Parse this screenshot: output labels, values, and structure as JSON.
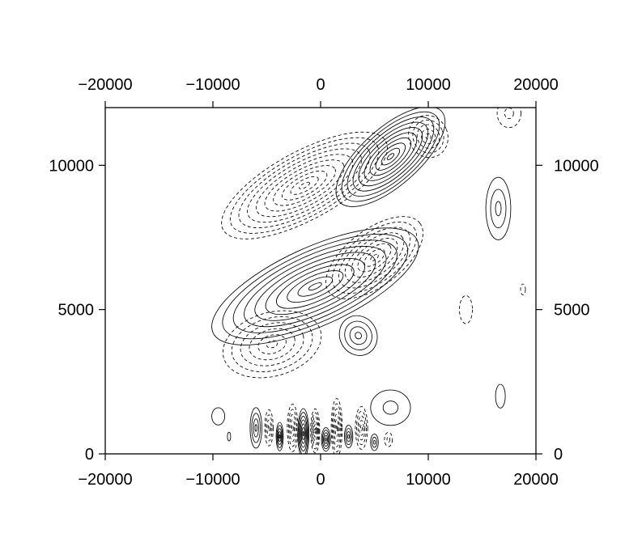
{
  "chart_data": {
    "type": "contour",
    "title": "",
    "xlabel": "",
    "ylabel": "",
    "xlim": [
      -20000,
      20000
    ],
    "ylim": [
      0,
      12000
    ],
    "x_ticks": [
      "−20000",
      "−10000",
      "0",
      "10000",
      "20000"
    ],
    "y_ticks": [
      "0",
      "5000",
      "10000"
    ],
    "grid": false,
    "line_color": "#000000",
    "positive_contours": "solid",
    "negative_contours": "dashed",
    "cells": [
      {
        "sign": 1,
        "cx": 6500,
        "cy": 10300,
        "sx": 7000,
        "sy": 1100,
        "tilt": -1.45,
        "levels": 10
      },
      {
        "sign": -1,
        "cx": -1500,
        "cy": 9300,
        "sx": 9500,
        "sy": 1300,
        "tilt": -1.0,
        "levels": 10
      },
      {
        "sign": -1,
        "cx": 10000,
        "cy": 11000,
        "sx": 2200,
        "sy": 900,
        "tilt": -0.8,
        "levels": 5
      },
      {
        "sign": 1,
        "cx": -500,
        "cy": 5800,
        "sx": 11500,
        "sy": 1500,
        "tilt": -0.85,
        "levels": 10
      },
      {
        "sign": -1,
        "cx": 5000,
        "cy": 6800,
        "sx": 6000,
        "sy": 1100,
        "tilt": -1.3,
        "levels": 8
      },
      {
        "sign": -1,
        "cx": -4500,
        "cy": 3800,
        "sx": 5500,
        "sy": 1300,
        "tilt": -0.55,
        "levels": 6
      },
      {
        "sign": 1,
        "cx": 3500,
        "cy": 4100,
        "sx": 2200,
        "sy": 900,
        "tilt": -1.0,
        "levels": 4
      },
      {
        "sign": 1,
        "cx": 16500,
        "cy": 8500,
        "sx": 1600,
        "sy": 1500,
        "tilt": 0,
        "levels": 3
      },
      {
        "sign": -1,
        "cx": 17500,
        "cy": 11800,
        "sx": 1800,
        "sy": 800,
        "tilt": 0,
        "levels": 2
      },
      {
        "sign": -1,
        "cx": 13500,
        "cy": 5000,
        "sx": 1600,
        "sy": 1300,
        "tilt": 0,
        "levels": 1
      },
      {
        "sign": -1,
        "cx": 18800,
        "cy": 5700,
        "sx": 600,
        "sy": 500,
        "tilt": 0,
        "levels": 1
      },
      {
        "sign": 1,
        "cx": 16700,
        "cy": 2000,
        "sx": 1200,
        "sy": 1100,
        "tilt": 0,
        "levels": 1
      },
      {
        "sign": 1,
        "cx": -9500,
        "cy": 1300,
        "sx": 1600,
        "sy": 800,
        "tilt": 0,
        "levels": 1
      },
      {
        "sign": 1,
        "cx": 6500,
        "cy": 1600,
        "sx": 3000,
        "sy": 1000,
        "tilt": 0,
        "levels": 2
      }
    ],
    "near_surface_cells": [
      {
        "sign": 1,
        "cx": -6000,
        "cy": 900,
        "sx": 700,
        "sy": 900,
        "levels": 4
      },
      {
        "sign": -1,
        "cx": -4800,
        "cy": 900,
        "sx": 500,
        "sy": 800,
        "levels": 4
      },
      {
        "sign": 1,
        "cx": -3800,
        "cy": 600,
        "sx": 400,
        "sy": 600,
        "levels": 5
      },
      {
        "sign": -1,
        "cx": -2600,
        "cy": 900,
        "sx": 600,
        "sy": 1000,
        "levels": 5
      },
      {
        "sign": 1,
        "cx": -1600,
        "cy": 700,
        "sx": 600,
        "sy": 1000,
        "levels": 7
      },
      {
        "sign": -1,
        "cx": -500,
        "cy": 800,
        "sx": 500,
        "sy": 900,
        "levels": 6
      },
      {
        "sign": 1,
        "cx": 500,
        "cy": 500,
        "sx": 500,
        "sy": 500,
        "levels": 5
      },
      {
        "sign": -1,
        "cx": 1500,
        "cy": 900,
        "sx": 600,
        "sy": 1200,
        "levels": 6
      },
      {
        "sign": 1,
        "cx": 2600,
        "cy": 600,
        "sx": 500,
        "sy": 500,
        "levels": 4
      },
      {
        "sign": -1,
        "cx": 3800,
        "cy": 900,
        "sx": 700,
        "sy": 900,
        "levels": 5
      },
      {
        "sign": 1,
        "cx": 5000,
        "cy": 400,
        "sx": 500,
        "sy": 400,
        "levels": 3
      },
      {
        "sign": -1,
        "cx": 6300,
        "cy": 500,
        "sx": 600,
        "sy": 400,
        "levels": 2
      },
      {
        "sign": 1,
        "cx": -8500,
        "cy": 600,
        "sx": 400,
        "sy": 400,
        "levels": 1
      }
    ]
  }
}
